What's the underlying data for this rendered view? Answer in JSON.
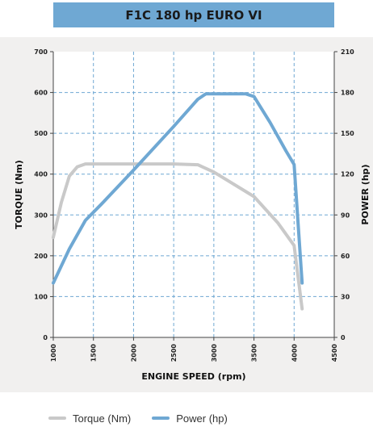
{
  "title": "F1C 180 hp EURO VI",
  "chart_data": {
    "type": "line",
    "title": "F1C 180 hp EURO VI",
    "xlabel": "ENGINE SPEED (rpm)",
    "ylabel_left": "TORQUE (Nm)",
    "ylabel_right": "POWER (hp)",
    "xlim": [
      1000,
      4500
    ],
    "ylim_left": [
      0,
      700
    ],
    "ylim_right": [
      0,
      210
    ],
    "x_ticks": [
      1000,
      1500,
      2000,
      2500,
      3000,
      3500,
      4000,
      4500
    ],
    "y_ticks_left": [
      0,
      100,
      200,
      300,
      400,
      500,
      600,
      700
    ],
    "y_ticks_right": [
      0,
      30,
      60,
      90,
      120,
      150,
      180,
      210
    ],
    "grid": true,
    "legend_position": "bottom",
    "series": [
      {
        "name": "Torque (Nm)",
        "axis": "left",
        "color": "#c9c9c9",
        "x": [
          1000,
          1100,
          1200,
          1300,
          1400,
          1500,
          2000,
          2500,
          2800,
          3000,
          3500,
          3800,
          4000,
          4100
        ],
        "y": [
          245,
          330,
          395,
          418,
          425,
          425,
          425,
          425,
          423,
          405,
          345,
          280,
          225,
          70
        ]
      },
      {
        "name": "Power (hp)",
        "axis": "right",
        "color": "#6fa8d3",
        "x": [
          1000,
          1200,
          1400,
          1600,
          2000,
          2500,
          2800,
          2900,
          3400,
          3500,
          3700,
          3900,
          4000,
          4100
        ],
        "y": [
          40,
          65,
          86,
          98,
          123,
          155,
          175,
          179,
          179,
          177,
          158,
          137,
          127,
          40
        ]
      }
    ]
  }
}
